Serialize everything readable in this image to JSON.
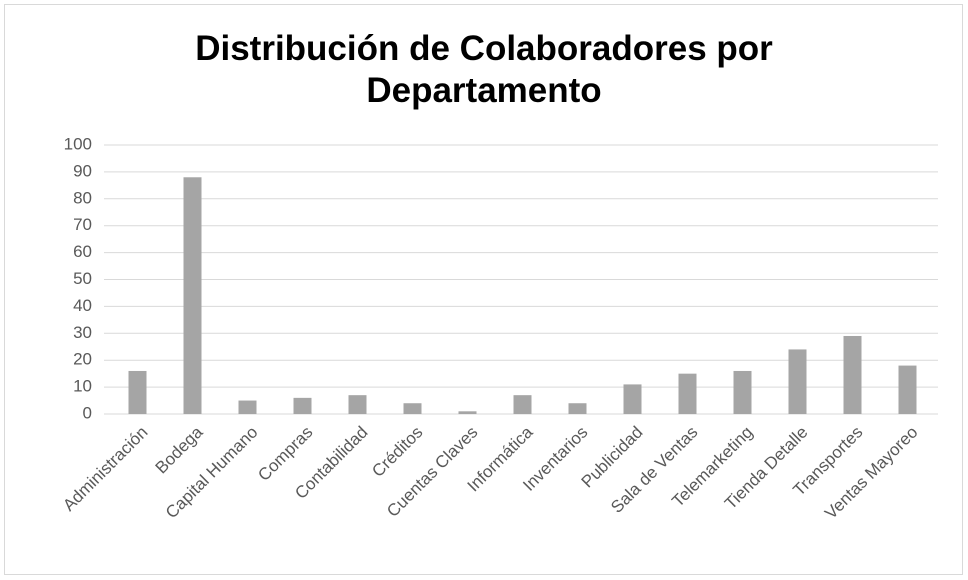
{
  "chart_data": {
    "type": "bar",
    "title": "Distribución de Colaboradores por Departamento",
    "categories": [
      "Administración",
      "Bodega",
      "Capital Humano",
      "Compras",
      "Contabilidad",
      "Créditos",
      "Cuentas Claves",
      "Informática",
      "Inventarios",
      "Publicidad",
      "Sala de Ventas",
      "Telemarketing",
      "Tienda Detalle",
      "Transportes",
      "Ventas Mayoreo"
    ],
    "values": [
      16,
      88,
      5,
      6,
      7,
      4,
      1,
      7,
      4,
      11,
      15,
      16,
      24,
      29,
      18
    ],
    "color": "#a5a5a5",
    "ylim": [
      0,
      100
    ],
    "yticks": [
      0,
      10,
      20,
      30,
      40,
      50,
      60,
      70,
      80,
      90,
      100
    ],
    "grid": true
  }
}
